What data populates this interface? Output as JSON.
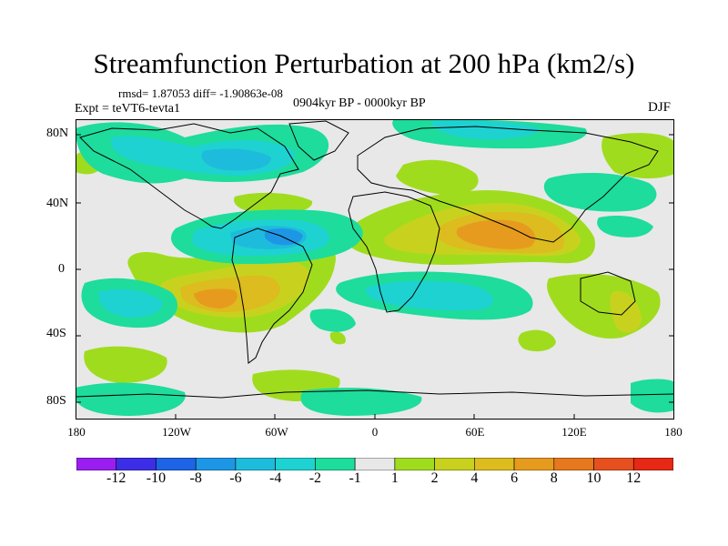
{
  "title": "Streamfunction Perturbation at 200 hPa (km2/s)",
  "stats": "rmsd= 1.87053 diff= -1.90863e-08",
  "experiment": "Expt = teVT6-tevta1",
  "period": "0904kyr BP - 0000kyr BP",
  "season": "DJF",
  "map": {
    "lat_ticks": [
      "80N",
      "40N",
      "0",
      "40S",
      "80S"
    ],
    "lon_ticks": [
      "180",
      "120W",
      "60W",
      "0",
      "60E",
      "120E",
      "180"
    ],
    "colors": {
      "ocean_neutral": "#e8e8e8",
      "coastline": "#000000"
    }
  },
  "colorbar": {
    "labels": [
      "-12",
      "-10",
      "-8",
      "-6",
      "-4",
      "-2",
      "-1",
      "1",
      "2",
      "4",
      "6",
      "8",
      "10",
      "12"
    ],
    "colors": [
      "#9a1ef0",
      "#3c2ee6",
      "#1e64e6",
      "#1e96e6",
      "#1ebcdc",
      "#1ed2d2",
      "#1edc9b",
      "#e8e8e8",
      "#a0dc1e",
      "#c8d21e",
      "#dcbc1e",
      "#e69b1e",
      "#e6781e",
      "#e6501e",
      "#e62814"
    ]
  }
}
